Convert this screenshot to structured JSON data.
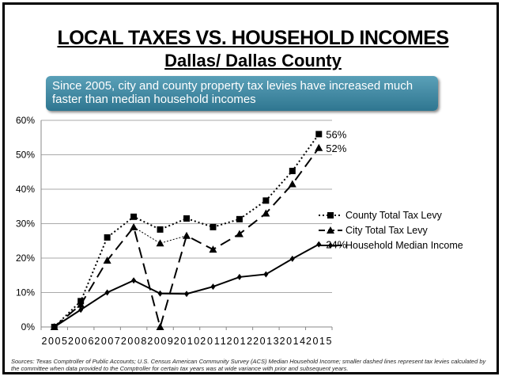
{
  "title": "LOCAL TAXES VS. HOUSEHOLD INCOMES",
  "subtitle": "Dallas/ Dallas County",
  "callout": "Since 2005, city and county property tax levies have increased much faster than median household incomes",
  "source": "Sources: Texas Comptroller of Public Accounts; U.S. Census American Community Survey (ACS) Median Household Income; smaller dashed lines represent tax levies calculated by the committee when data provided to the Comptroller for certain tax years was at wide variance with prior and subsequent years.",
  "chart_data": {
    "type": "line",
    "categories": [
      "2005",
      "2006",
      "2007",
      "2008",
      "2009",
      "2010",
      "2011",
      "2012",
      "2013",
      "2014",
      "2015"
    ],
    "ylim": [
      0,
      60
    ],
    "yticks": [
      "0%",
      "10%",
      "20%",
      "30%",
      "40%",
      "50%",
      "60%"
    ],
    "grid": true,
    "legend_placement": "right",
    "series": [
      {
        "name": "County Total Tax Levy",
        "values": [
          0,
          7.5,
          26,
          32,
          28.3,
          31.5,
          29,
          31.3,
          36.7,
          45.3,
          56
        ],
        "end_label": "56%",
        "style": "dotted",
        "marker": "square"
      },
      {
        "name": "City Total Tax Levy",
        "values": [
          0,
          6.5,
          19.3,
          29,
          0,
          26.5,
          22.5,
          27,
          33,
          41.5,
          52
        ],
        "end_label": "52%",
        "style": "dashed",
        "marker": "triangle",
        "alt_values": {
          "2009": 24.3
        }
      },
      {
        "name": "Household Median Income",
        "values": [
          0,
          5,
          10,
          13.5,
          9.7,
          9.6,
          11.7,
          14.5,
          15.3,
          19.8,
          24
        ],
        "end_label": "24%",
        "style": "solid",
        "marker": "diamond"
      }
    ]
  }
}
